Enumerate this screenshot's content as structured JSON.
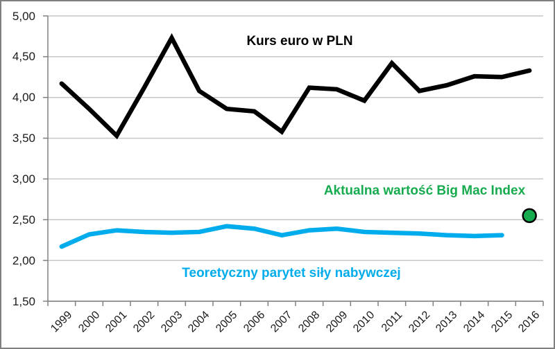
{
  "chart_data": {
    "type": "line",
    "title": "Kurs euro w PLN",
    "xlabel": "",
    "ylabel": "",
    "ylim": [
      1.5,
      5.0
    ],
    "y_step": 0.5,
    "y_tick_labels": [
      "5,00",
      "4,50",
      "4,00",
      "3,50",
      "3,00",
      "2,50",
      "2,00",
      "1,50"
    ],
    "grid": "horizontal",
    "legend_position": "inline-annotations",
    "categories": [
      "1999",
      "2000",
      "2001",
      "2002",
      "2003",
      "2004",
      "2005",
      "2006",
      "2007",
      "2008",
      "2009",
      "2010",
      "2011",
      "2012",
      "2013",
      "2014",
      "2015",
      "2016"
    ],
    "series": [
      {
        "name": "Kurs euro w PLN",
        "color": "#000000",
        "values": [
          4.17,
          3.86,
          3.53,
          4.12,
          4.73,
          4.08,
          3.86,
          3.83,
          3.58,
          4.12,
          4.1,
          3.96,
          4.42,
          4.08,
          4.15,
          4.26,
          4.25,
          4.33
        ]
      },
      {
        "name": "Teoretyczny parytet siły nabywczej",
        "color": "#00ACEC",
        "values": [
          2.17,
          2.32,
          2.37,
          2.35,
          2.34,
          2.35,
          2.42,
          2.39,
          2.31,
          2.37,
          2.39,
          2.35,
          2.34,
          2.33,
          2.31,
          2.3,
          2.31,
          null
        ]
      }
    ],
    "point_marker": {
      "name": "Aktualna wartość Big Mac Index",
      "category": "2016",
      "value": 2.55,
      "fill": "#17AB4F",
      "stroke": "#000000"
    }
  },
  "colors": {
    "euro_line": "#000000",
    "ppp_line": "#00ACEC",
    "bigmac_green": "#17AB4F",
    "grid": "#C6C6C6",
    "axis": "#808080",
    "tick_text": "#1A1A1A",
    "background": "#FFFFFF",
    "border": "#7F7F7F"
  }
}
